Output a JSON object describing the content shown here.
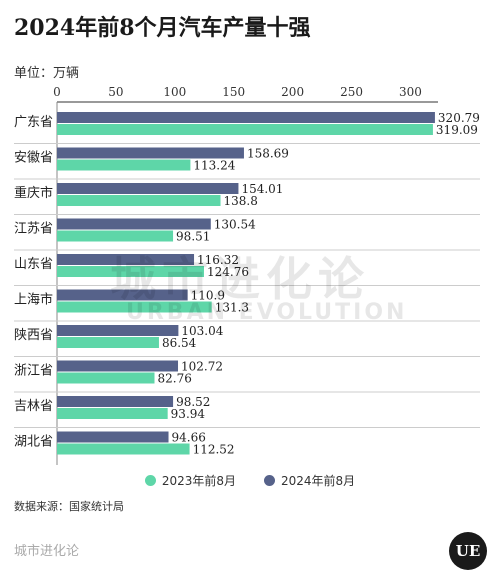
{
  "header": {
    "title": "2024年前8个月汽车产量十强",
    "unit": "单位：万辆"
  },
  "watermark": {
    "cn": "城市进化论",
    "en": "URBAN EVOLUTION"
  },
  "source": "数据来源：国家统计局",
  "footer": {
    "brand": "城市进化论",
    "logo_text": "UE"
  },
  "colors": {
    "y2023": "#5ed6a8",
    "y2024": "#56628a",
    "grid": "#cccccc"
  },
  "chart_data": {
    "type": "bar",
    "orientation": "horizontal",
    "categories": [
      "广东省",
      "安徽省",
      "重庆市",
      "江苏省",
      "山东省",
      "上海市",
      "陕西省",
      "浙江省",
      "吉林省",
      "湖北省"
    ],
    "series": [
      {
        "name": "2024年前8月",
        "values": [
          320.79,
          158.69,
          154.01,
          130.54,
          116.32,
          110.9,
          103.04,
          102.72,
          98.52,
          94.66
        ]
      },
      {
        "name": "2023年前8月",
        "values": [
          319.09,
          113.24,
          138.8,
          98.51,
          124.76,
          131.3,
          86.54,
          82.76,
          93.94,
          112.52
        ]
      }
    ],
    "value_labels": [
      [
        "320.79",
        "158.69",
        "154.01",
        "130.54",
        "116.32",
        "110.9",
        "103.04",
        "102.72",
        "98.52",
        "94.66"
      ],
      [
        "319.09",
        "113.24",
        "138.8",
        "98.51",
        "124.76",
        "131.3",
        "86.54",
        "82.76",
        "93.94",
        "112.52"
      ]
    ],
    "xlim": [
      0,
      320
    ],
    "xticks": [
      0,
      50,
      100,
      150,
      200,
      250,
      300
    ],
    "legend": {
      "position": "bottom",
      "order": [
        "2023年前8月",
        "2024年前8月"
      ]
    }
  }
}
